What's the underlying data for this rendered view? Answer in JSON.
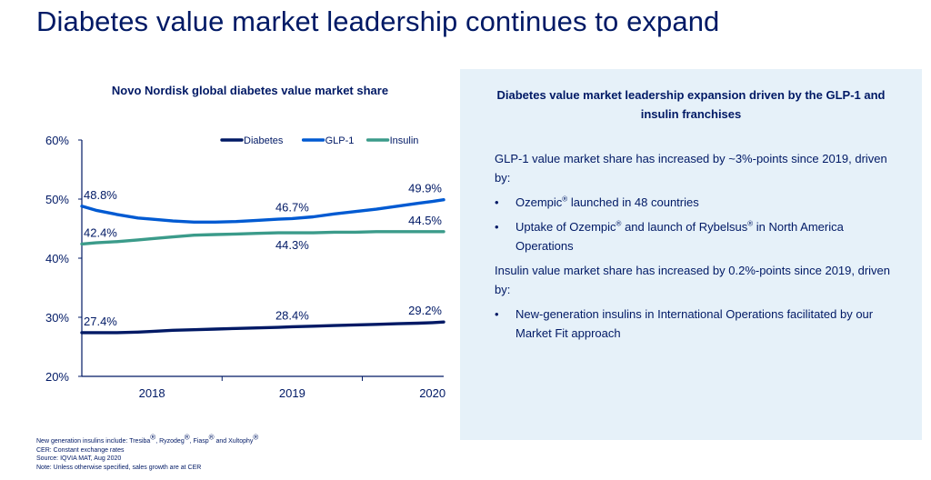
{
  "page": {
    "title": "Diabetes value market leadership continues to expand"
  },
  "chart_data": {
    "type": "line",
    "title": "Novo Nordisk global diabetes value market share",
    "xlabel": "",
    "ylabel": "",
    "ylim": [
      20,
      60
    ],
    "y_ticks": [
      "20%",
      "30%",
      "40%",
      "50%",
      "60%"
    ],
    "x_tick_labels": [
      "2018",
      "2019",
      "2020"
    ],
    "grid": false,
    "legend_position": "top-right",
    "x": [
      2017.5,
      2017.6,
      2017.75,
      2017.9,
      2018.0,
      2018.15,
      2018.3,
      2018.45,
      2018.6,
      2018.75,
      2018.9,
      2019.0,
      2019.15,
      2019.3,
      2019.45,
      2019.6,
      2019.75,
      2019.9,
      2020.0,
      2020.08
    ],
    "series": [
      {
        "name": "Diabetes",
        "color": "#001965",
        "values": [
          27.4,
          27.4,
          27.4,
          27.5,
          27.6,
          27.8,
          27.9,
          28.0,
          28.1,
          28.2,
          28.3,
          28.4,
          28.5,
          28.6,
          28.7,
          28.8,
          28.9,
          29.0,
          29.1,
          29.2
        ]
      },
      {
        "name": "GLP-1",
        "color": "#005ad2",
        "values": [
          48.8,
          48.1,
          47.4,
          46.8,
          46.6,
          46.3,
          46.1,
          46.1,
          46.2,
          46.4,
          46.6,
          46.7,
          47.0,
          47.5,
          47.9,
          48.3,
          48.8,
          49.3,
          49.6,
          49.9
        ]
      },
      {
        "name": "Insulin",
        "color": "#3b9b8a",
        "values": [
          42.4,
          42.6,
          42.8,
          43.1,
          43.3,
          43.6,
          43.9,
          44.0,
          44.1,
          44.2,
          44.3,
          44.3,
          44.3,
          44.4,
          44.4,
          44.5,
          44.5,
          44.5,
          44.5,
          44.5
        ]
      }
    ],
    "data_labels": [
      {
        "series": "GLP-1",
        "x": 2017.5,
        "y": 48.8,
        "text": "48.8%"
      },
      {
        "series": "GLP-1",
        "x": 2019.0,
        "y": 46.7,
        "text": "46.7%"
      },
      {
        "series": "GLP-1",
        "x": 2020.08,
        "y": 49.9,
        "text": "49.9%"
      },
      {
        "series": "Insulin",
        "x": 2017.5,
        "y": 42.4,
        "text": "42.4%"
      },
      {
        "series": "Insulin",
        "x": 2019.0,
        "y": 44.3,
        "text": "44.3%"
      },
      {
        "series": "Insulin",
        "x": 2020.08,
        "y": 44.5,
        "text": "44.5%"
      },
      {
        "series": "Diabetes",
        "x": 2017.5,
        "y": 27.4,
        "text": "27.4%"
      },
      {
        "series": "Diabetes",
        "x": 2019.0,
        "y": 28.4,
        "text": "28.4%"
      },
      {
        "series": "Diabetes",
        "x": 2020.08,
        "y": 29.2,
        "text": "29.2%"
      }
    ]
  },
  "panel": {
    "title": "Diabetes value market leadership expansion driven by the GLP-1 and insulin franchises",
    "glp1_intro": "GLP-1 value market share has increased by ~3%-points since 2019, driven by:",
    "bullet_symbol": "•",
    "b1_pre": "Ozempic",
    "b1_post": " launched in 48 countries",
    "b2_pre": "Uptake of Ozempic",
    "b2_mid": " and launch of Rybelsus",
    "b2_post": " in North America Operations",
    "registered": "®",
    "insulin_intro": "Insulin value market share has increased by 0.2%-points since 2019, driven by:",
    "b3": "New-generation insulins in International Operations facilitated by our Market Fit approach"
  },
  "footnotes": {
    "line1_a": "New generation insulins include: Tresiba",
    "line1_b": ", Ryzodeg",
    "line1_c": ", Fiasp",
    "line1_d": " and Xultophy",
    "line2": "CER: Constant exchange rates",
    "line3": "Source: IQVIA MAT, Aug 2020",
    "line4": "Note: Unless otherwise specified, sales growth are at CER"
  }
}
